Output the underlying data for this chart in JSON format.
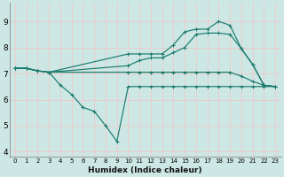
{
  "xlabel": "Humidex (Indice chaleur)",
  "xlim": [
    -0.5,
    23.5
  ],
  "ylim": [
    3.8,
    9.7
  ],
  "yticks": [
    4,
    5,
    6,
    7,
    8,
    9
  ],
  "xticks": [
    0,
    1,
    2,
    3,
    4,
    5,
    6,
    7,
    8,
    9,
    10,
    11,
    12,
    13,
    14,
    15,
    16,
    17,
    18,
    19,
    20,
    21,
    22,
    23
  ],
  "bg_color": "#cde8e4",
  "grid_color": "#f0c8c8",
  "line_color": "#1a7a6e",
  "series": [
    {
      "x": [
        0,
        1,
        2,
        3,
        10,
        11,
        12,
        13,
        14,
        15,
        16,
        17,
        18,
        19,
        20,
        21,
        22,
        23
      ],
      "y": [
        7.2,
        7.2,
        7.1,
        7.05,
        7.75,
        7.75,
        7.75,
        7.75,
        8.1,
        8.6,
        8.7,
        8.7,
        9.0,
        8.85,
        7.95,
        7.35,
        6.55,
        6.5
      ]
    },
    {
      "x": [
        0,
        1,
        2,
        3,
        10,
        11,
        12,
        13,
        14,
        15,
        16,
        17,
        18,
        19,
        20,
        21,
        22,
        23
      ],
      "y": [
        7.2,
        7.2,
        7.1,
        7.05,
        7.3,
        7.5,
        7.6,
        7.6,
        7.8,
        8.0,
        8.5,
        8.55,
        8.55,
        8.5,
        7.95,
        7.35,
        6.55,
        6.5
      ]
    },
    {
      "x": [
        0,
        1,
        2,
        3,
        10,
        11,
        12,
        13,
        14,
        15,
        16,
        17,
        18,
        19,
        20,
        21,
        22,
        23
      ],
      "y": [
        7.2,
        7.2,
        7.1,
        7.05,
        7.05,
        7.05,
        7.05,
        7.05,
        7.05,
        7.05,
        7.05,
        7.05,
        7.05,
        7.05,
        6.9,
        6.7,
        6.55,
        6.5
      ]
    },
    {
      "x": [
        0,
        1,
        2,
        3,
        4,
        5,
        6,
        7,
        8,
        9,
        10,
        11,
        12,
        13,
        14,
        15,
        16,
        17,
        18,
        19,
        20,
        21,
        22,
        23
      ],
      "y": [
        7.2,
        7.2,
        7.1,
        7.05,
        6.55,
        6.2,
        5.7,
        5.55,
        5.0,
        4.4,
        6.5,
        6.5,
        6.5,
        6.5,
        6.5,
        6.5,
        6.5,
        6.5,
        6.5,
        6.5,
        6.5,
        6.5,
        6.5,
        6.5
      ]
    }
  ]
}
